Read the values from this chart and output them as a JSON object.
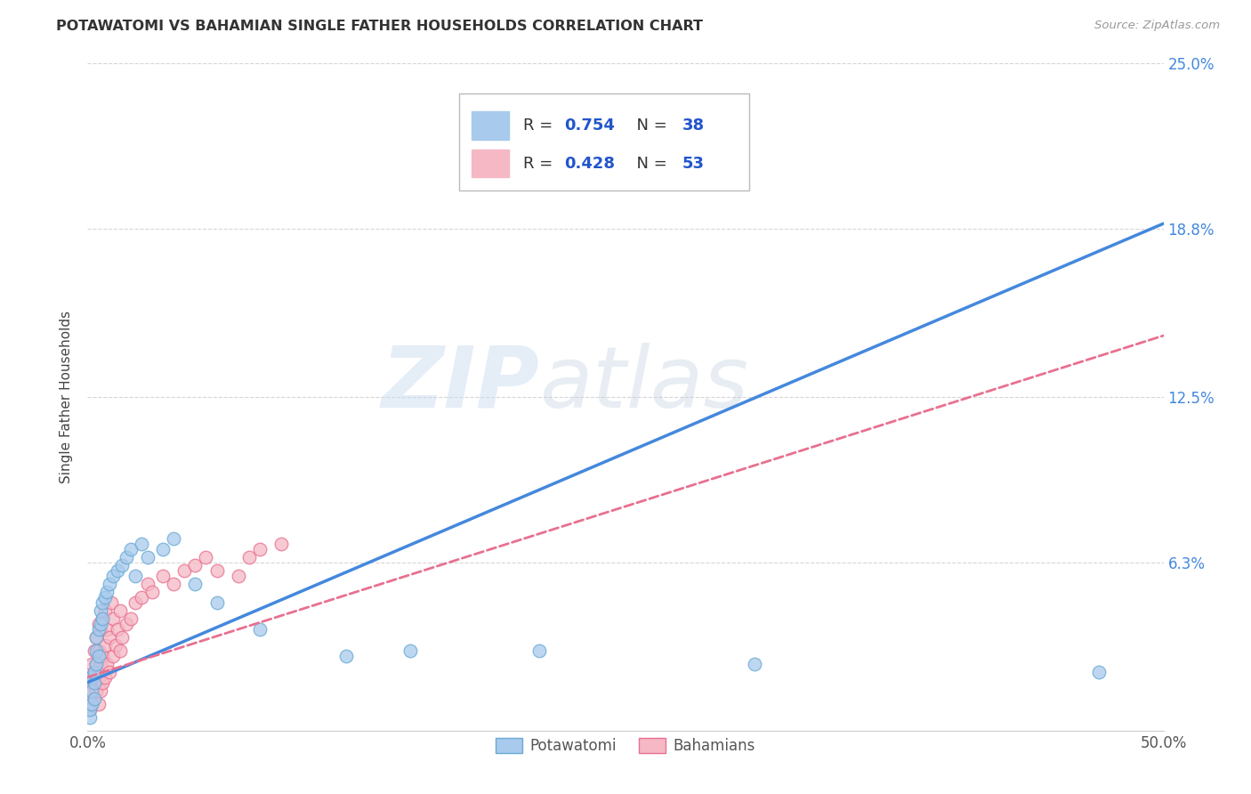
{
  "title": "POTAWATOMI VS BAHAMIAN SINGLE FATHER HOUSEHOLDS CORRELATION CHART",
  "source": "Source: ZipAtlas.com",
  "ylabel": "Single Father Households",
  "xlim": [
    0,
    0.5
  ],
  "ylim": [
    0,
    0.25
  ],
  "xtick_vals": [
    0.0,
    0.1,
    0.2,
    0.3,
    0.4,
    0.5
  ],
  "xtick_labels": [
    "0.0%",
    "",
    "",
    "",
    "",
    "50.0%"
  ],
  "ytick_vals": [
    0.0,
    0.063,
    0.125,
    0.188,
    0.25
  ],
  "ytick_right_labels": [
    "",
    "6.3%",
    "12.5%",
    "18.8%",
    "25.0%"
  ],
  "r_potawatomi": 0.754,
  "n_potawatomi": 38,
  "r_bahamian": 0.428,
  "n_bahamian": 53,
  "potawatomi_fill": "#A8CAED",
  "potawatomi_edge": "#6AAAD4",
  "bahamian_fill": "#F5B8C4",
  "bahamian_edge": "#E87090",
  "potawatomi_line_color": "#4488DD",
  "bahamian_line_color": "#E87090",
  "grid_color": "#CCCCCC",
  "background_color": "#FFFFFF",
  "watermark_zip": "ZIP",
  "watermark_atlas": "atlas",
  "potawatomi_x": [
    0.001,
    0.001,
    0.002,
    0.002,
    0.002,
    0.003,
    0.003,
    0.003,
    0.004,
    0.004,
    0.004,
    0.005,
    0.005,
    0.006,
    0.006,
    0.007,
    0.007,
    0.008,
    0.009,
    0.01,
    0.012,
    0.014,
    0.016,
    0.018,
    0.02,
    0.022,
    0.025,
    0.028,
    0.035,
    0.04,
    0.05,
    0.06,
    0.08,
    0.12,
    0.15,
    0.21,
    0.31,
    0.47
  ],
  "potawatomi_y": [
    0.005,
    0.008,
    0.01,
    0.015,
    0.02,
    0.012,
    0.018,
    0.022,
    0.025,
    0.03,
    0.035,
    0.028,
    0.038,
    0.04,
    0.045,
    0.042,
    0.048,
    0.05,
    0.052,
    0.055,
    0.058,
    0.06,
    0.062,
    0.065,
    0.068,
    0.058,
    0.07,
    0.065,
    0.068,
    0.072,
    0.055,
    0.048,
    0.038,
    0.028,
    0.03,
    0.03,
    0.025,
    0.022
  ],
  "bahamian_x": [
    0.001,
    0.001,
    0.001,
    0.002,
    0.002,
    0.002,
    0.003,
    0.003,
    0.003,
    0.004,
    0.004,
    0.004,
    0.005,
    0.005,
    0.005,
    0.005,
    0.006,
    0.006,
    0.006,
    0.007,
    0.007,
    0.007,
    0.008,
    0.008,
    0.008,
    0.009,
    0.009,
    0.01,
    0.01,
    0.011,
    0.012,
    0.012,
    0.013,
    0.014,
    0.015,
    0.015,
    0.016,
    0.018,
    0.02,
    0.022,
    0.025,
    0.028,
    0.03,
    0.035,
    0.04,
    0.045,
    0.05,
    0.055,
    0.06,
    0.07,
    0.075,
    0.08,
    0.09
  ],
  "bahamian_y": [
    0.008,
    0.015,
    0.02,
    0.01,
    0.018,
    0.025,
    0.012,
    0.022,
    0.03,
    0.015,
    0.025,
    0.035,
    0.01,
    0.02,
    0.03,
    0.04,
    0.015,
    0.025,
    0.038,
    0.018,
    0.028,
    0.042,
    0.02,
    0.032,
    0.045,
    0.025,
    0.038,
    0.022,
    0.035,
    0.048,
    0.028,
    0.042,
    0.032,
    0.038,
    0.03,
    0.045,
    0.035,
    0.04,
    0.042,
    0.048,
    0.05,
    0.055,
    0.052,
    0.058,
    0.055,
    0.06,
    0.062,
    0.065,
    0.06,
    0.058,
    0.065,
    0.068,
    0.07
  ],
  "pot_line_x0": 0.0,
  "pot_line_y0": 0.018,
  "pot_line_x1": 0.5,
  "pot_line_y1": 0.19,
  "bah_line_x0": 0.0,
  "bah_line_y0": 0.02,
  "bah_line_x1": 0.5,
  "bah_line_y1": 0.148
}
